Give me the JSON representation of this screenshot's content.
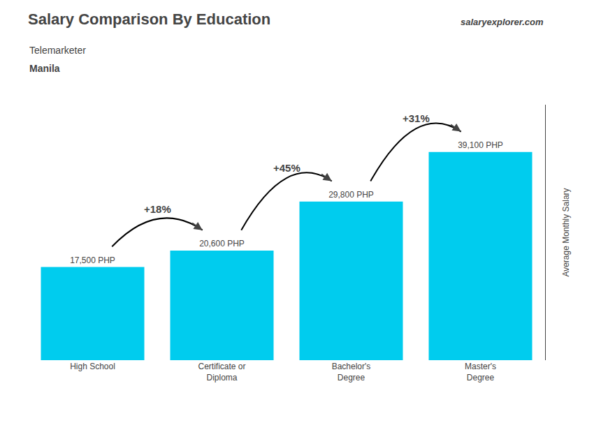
{
  "chart_data": {
    "type": "bar",
    "title": "Salary Comparison By Education",
    "subtitle": "Telemarketer",
    "ylabel": "Average Monthly Salary",
    "categories": [
      "High School",
      "Certificate or\nDiploma",
      "Bachelor's\nDegree",
      "Master's\nDegree"
    ],
    "values": [
      17500,
      20600,
      29800,
      39100
    ],
    "value_labels": [
      "17,500 PHP",
      "20,600 PHP",
      "29,800 PHP",
      "39,100 PHP"
    ],
    "data_labels": true,
    "color": "#00ccee",
    "ylim": [
      0,
      48000
    ],
    "grid": false,
    "tick_labels": "x",
    "annotations": [
      {
        "text": "Manila"
      },
      {
        "text": "salaryexplorer.com"
      },
      {
        "text": "+18%",
        "from": "High School",
        "to": "Certificate or\nDiploma"
      },
      {
        "text": "+45%",
        "from": "Certificate or\nDiploma",
        "to": "Bachelor's\nDegree"
      },
      {
        "text": "+31%",
        "from": "Bachelor's\nDegree",
        "to": "Master's\nDegree"
      }
    ]
  }
}
